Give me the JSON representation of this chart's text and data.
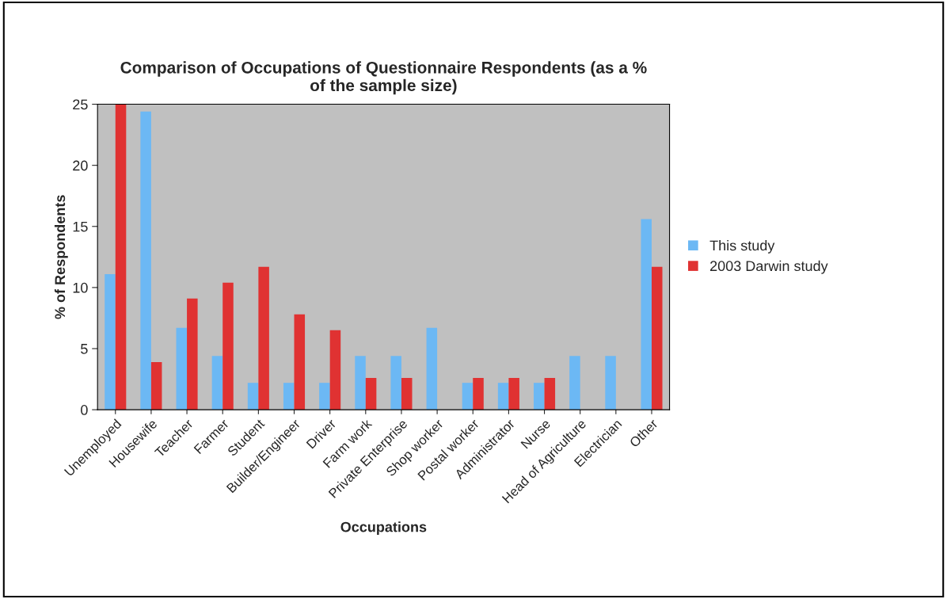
{
  "chart_data": {
    "type": "bar",
    "title": "Comparison of Occupations of Questionnaire Respondents (as a %\nof the sample size)",
    "xlabel": "Occupations",
    "ylabel": "% of Respondents",
    "categories": [
      "Unemployed",
      "Housewife",
      "Teacher",
      "Farmer",
      "Student",
      "Builder/Engineer",
      "Driver",
      "Farm work",
      "Private Enterprise",
      "Shop worker",
      "Postal worker",
      "Administrator",
      "Nurse",
      "Head of Agriculture",
      "Electrician",
      "Other"
    ],
    "series": [
      {
        "name": "This study",
        "color": "#6cb8f4",
        "values": [
          11.1,
          24.4,
          6.7,
          4.4,
          2.2,
          2.2,
          2.2,
          4.4,
          4.4,
          6.7,
          2.2,
          2.2,
          2.2,
          4.4,
          4.4,
          15.6
        ]
      },
      {
        "name": "2003 Darwin study",
        "color": "#e03232",
        "values": [
          25,
          3.9,
          9.1,
          10.4,
          11.7,
          7.8,
          6.5,
          2.6,
          2.6,
          null,
          2.6,
          2.6,
          2.6,
          null,
          null,
          11.7
        ]
      }
    ],
    "ylim": [
      0,
      25
    ],
    "yticks": [
      0,
      5,
      10,
      15,
      20,
      25
    ],
    "grid": false,
    "legend": "right"
  }
}
